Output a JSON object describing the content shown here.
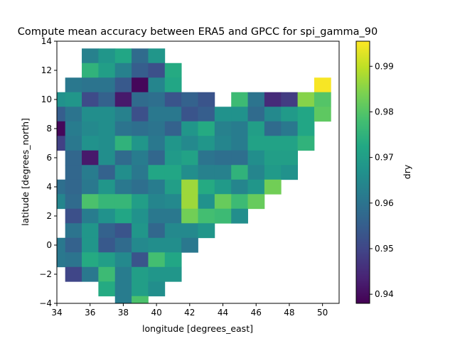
{
  "chart_data": {
    "type": "heatmap",
    "title": "Compute mean accuracy between ERA5 and GPCC for spi_gamma_90",
    "xlabel": "longitude [degrees_east]",
    "ylabel": "latitude [degrees_north]",
    "colorbar_label": "dry",
    "colormap": "viridis",
    "xlim": [
      34,
      51
    ],
    "ylim": [
      -4,
      14
    ],
    "cell_size_degrees": 1,
    "x_ticks": [
      34,
      36,
      38,
      40,
      42,
      44,
      46,
      48,
      50
    ],
    "y_ticks": [
      -4,
      -2,
      0,
      2,
      4,
      6,
      8,
      10,
      12,
      14
    ],
    "color_range": [
      0.938,
      0.9955
    ],
    "colorbar_ticks": [
      0.94,
      0.95,
      0.96,
      0.97,
      0.98,
      0.99
    ],
    "grid": false,
    "cells": [
      {
        "lat": 13,
        "values": [
          [
            36,
            0.963
          ],
          [
            37,
            0.968
          ],
          [
            38,
            0.972
          ],
          [
            39,
            0.958
          ],
          [
            40,
            0.968
          ]
        ]
      },
      {
        "lat": 12,
        "values": [
          [
            36,
            0.975
          ],
          [
            37,
            0.97
          ],
          [
            38,
            0.963
          ],
          [
            39,
            0.955
          ],
          [
            40,
            0.952
          ],
          [
            41,
            0.973
          ]
        ]
      },
      {
        "lat": 11,
        "values": [
          [
            35,
            0.961
          ],
          [
            36,
            0.96
          ],
          [
            37,
            0.96
          ],
          [
            38,
            0.954
          ],
          [
            39,
            0.939
          ],
          [
            40,
            0.964
          ],
          [
            41,
            0.972
          ],
          [
            50,
            0.995
          ]
        ]
      },
      {
        "lat": 10,
        "values": [
          [
            34,
            0.967
          ],
          [
            35,
            0.968
          ],
          [
            36,
            0.951
          ],
          [
            37,
            0.956
          ],
          [
            38,
            0.942
          ],
          [
            39,
            0.958
          ],
          [
            40,
            0.959
          ],
          [
            41,
            0.953
          ],
          [
            42,
            0.956
          ],
          [
            43,
            0.953
          ],
          [
            45,
            0.977
          ],
          [
            46,
            0.96
          ],
          [
            47,
            0.945
          ],
          [
            48,
            0.948
          ],
          [
            49,
            0.985
          ],
          [
            50,
            0.98
          ]
        ]
      },
      {
        "lat": 9,
        "values": [
          [
            34,
            0.955
          ],
          [
            35,
            0.96
          ],
          [
            36,
            0.966
          ],
          [
            37,
            0.966
          ],
          [
            38,
            0.963
          ],
          [
            39,
            0.952
          ],
          [
            40,
            0.961
          ],
          [
            41,
            0.961
          ],
          [
            42,
            0.953
          ],
          [
            43,
            0.955
          ],
          [
            44,
            0.967
          ],
          [
            45,
            0.967
          ],
          [
            46,
            0.958
          ],
          [
            47,
            0.965
          ],
          [
            48,
            0.969
          ],
          [
            49,
            0.972
          ],
          [
            50,
            0.981
          ]
        ]
      },
      {
        "lat": 8,
        "values": [
          [
            34,
            0.939
          ],
          [
            35,
            0.962
          ],
          [
            36,
            0.965
          ],
          [
            37,
            0.966
          ],
          [
            38,
            0.96
          ],
          [
            39,
            0.959
          ],
          [
            40,
            0.96
          ],
          [
            41,
            0.956
          ],
          [
            42,
            0.968
          ],
          [
            43,
            0.973
          ],
          [
            44,
            0.963
          ],
          [
            45,
            0.962
          ],
          [
            46,
            0.97
          ],
          [
            47,
            0.958
          ],
          [
            48,
            0.961
          ],
          [
            49,
            0.972
          ]
        ]
      },
      {
        "lat": 7,
        "values": [
          [
            34,
            0.949
          ],
          [
            35,
            0.961
          ],
          [
            36,
            0.967
          ],
          [
            37,
            0.966
          ],
          [
            38,
            0.975
          ],
          [
            39,
            0.968
          ],
          [
            40,
            0.961
          ],
          [
            41,
            0.968
          ],
          [
            42,
            0.965
          ],
          [
            43,
            0.968
          ],
          [
            44,
            0.964
          ],
          [
            45,
            0.962
          ],
          [
            46,
            0.971
          ],
          [
            47,
            0.971
          ],
          [
            48,
            0.971
          ],
          [
            49,
            0.975
          ]
        ]
      },
      {
        "lat": 6,
        "values": [
          [
            35,
            0.957
          ],
          [
            36,
            0.942
          ],
          [
            37,
            0.966
          ],
          [
            38,
            0.958
          ],
          [
            39,
            0.962
          ],
          [
            40,
            0.957
          ],
          [
            41,
            0.969
          ],
          [
            42,
            0.971
          ],
          [
            43,
            0.96
          ],
          [
            44,
            0.959
          ],
          [
            45,
            0.959
          ],
          [
            46,
            0.966
          ],
          [
            47,
            0.97
          ],
          [
            48,
            0.97
          ]
        ]
      },
      {
        "lat": 5,
        "values": [
          [
            35,
            0.957
          ],
          [
            36,
            0.962
          ],
          [
            37,
            0.956
          ],
          [
            38,
            0.966
          ],
          [
            39,
            0.961
          ],
          [
            40,
            0.972
          ],
          [
            41,
            0.972
          ],
          [
            42,
            0.966
          ],
          [
            43,
            0.963
          ],
          [
            44,
            0.963
          ],
          [
            45,
            0.975
          ],
          [
            46,
            0.964
          ],
          [
            47,
            0.969
          ],
          [
            48,
            0.967
          ]
        ]
      },
      {
        "lat": 4,
        "values": [
          [
            34,
            0.959
          ],
          [
            35,
            0.957
          ],
          [
            36,
            0.961
          ],
          [
            37,
            0.968
          ],
          [
            38,
            0.961
          ],
          [
            39,
            0.959
          ],
          [
            40,
            0.962
          ],
          [
            41,
            0.97
          ],
          [
            42,
            0.987
          ],
          [
            43,
            0.973
          ],
          [
            44,
            0.969
          ],
          [
            45,
            0.964
          ],
          [
            46,
            0.968
          ],
          [
            47,
            0.983
          ]
        ]
      },
      {
        "lat": 3,
        "values": [
          [
            34,
            0.964
          ],
          [
            35,
            0.958
          ],
          [
            36,
            0.979
          ],
          [
            37,
            0.976
          ],
          [
            38,
            0.976
          ],
          [
            39,
            0.97
          ],
          [
            40,
            0.964
          ],
          [
            41,
            0.965
          ],
          [
            42,
            0.987
          ],
          [
            43,
            0.967
          ],
          [
            44,
            0.982
          ],
          [
            45,
            0.977
          ],
          [
            46,
            0.982
          ]
        ]
      },
      {
        "lat": 2,
        "values": [
          [
            35,
            0.952
          ],
          [
            36,
            0.962
          ],
          [
            37,
            0.967
          ],
          [
            38,
            0.972
          ],
          [
            39,
            0.967
          ],
          [
            40,
            0.961
          ],
          [
            41,
            0.961
          ],
          [
            42,
            0.983
          ],
          [
            43,
            0.978
          ],
          [
            44,
            0.977
          ],
          [
            45,
            0.966
          ]
        ]
      },
      {
        "lat": 1,
        "values": [
          [
            35,
            0.96
          ],
          [
            36,
            0.968
          ],
          [
            37,
            0.956
          ],
          [
            38,
            0.953
          ],
          [
            39,
            0.968
          ],
          [
            40,
            0.957
          ],
          [
            41,
            0.965
          ],
          [
            42,
            0.965
          ],
          [
            43,
            0.968
          ]
        ]
      },
      {
        "lat": 0,
        "values": [
          [
            34,
            0.961
          ],
          [
            35,
            0.956
          ],
          [
            36,
            0.968
          ],
          [
            37,
            0.954
          ],
          [
            38,
            0.958
          ],
          [
            39,
            0.965
          ],
          [
            40,
            0.966
          ],
          [
            41,
            0.966
          ],
          [
            42,
            0.961
          ]
        ]
      },
      {
        "lat": -1,
        "values": [
          [
            34,
            0.961
          ],
          [
            35,
            0.96
          ],
          [
            36,
            0.973
          ],
          [
            37,
            0.97
          ],
          [
            38,
            0.965
          ],
          [
            39,
            0.953
          ],
          [
            40,
            0.978
          ],
          [
            41,
            0.972
          ]
        ]
      },
      {
        "lat": -2,
        "values": [
          [
            35,
            0.95
          ],
          [
            36,
            0.961
          ],
          [
            37,
            0.977
          ],
          [
            38,
            0.962
          ],
          [
            39,
            0.97
          ],
          [
            40,
            0.968
          ],
          [
            41,
            0.968
          ]
        ]
      },
      {
        "lat": -3,
        "values": [
          [
            37,
            0.973
          ],
          [
            38,
            0.962
          ],
          [
            39,
            0.97
          ],
          [
            40,
            0.966
          ]
        ]
      },
      {
        "lat": -4,
        "values": [
          [
            38,
            0.962
          ],
          [
            39,
            0.979
          ]
        ]
      }
    ]
  }
}
